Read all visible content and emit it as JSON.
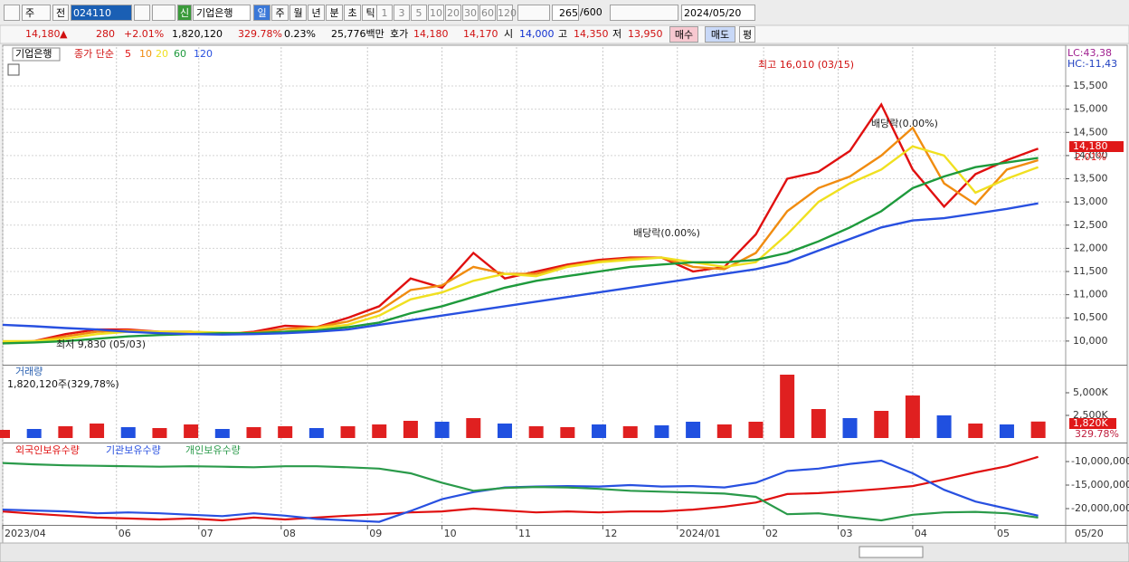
{
  "toolbar": {
    "period": "주",
    "prev": "전",
    "code": "024110",
    "badge": "신",
    "name": "기업은행",
    "units": [
      "일",
      "주",
      "월",
      "년",
      "분",
      "초",
      "틱"
    ],
    "periods": [
      "1",
      "3",
      "5",
      "10",
      "20",
      "30",
      "60",
      "120"
    ],
    "count": "265",
    "max": "/600",
    "date": "2024/05/20"
  },
  "quote": {
    "price": "14,180",
    "arrow": "▲",
    "change": "280",
    "pct": "+2.01%",
    "volume": "1,820,120",
    "vol_ratio": "329.78%",
    "turnover": "0.23%",
    "amount": "25,776백만",
    "ask_label": "호가",
    "ask": "14,180",
    "bid": "14,170",
    "open_label": "시",
    "open": "14,000",
    "high_label": "고",
    "high": "14,350",
    "low_label": "저",
    "low": "13,950",
    "buy": "매수",
    "sell": "매도",
    "eval": "평"
  },
  "chart_data": [
    {
      "type": "line",
      "stock": "기업은행",
      "legend_prefix": "종가 단순",
      "corner_labels": [
        "LC:43,38",
        "HC:-11,43"
      ],
      "price_tag": "14,180",
      "pct_tag": "2.01%",
      "annotations": [
        "최고 16,010 (03/15)",
        "최저 9,830 (05/03)",
        "배당락(0.00%)",
        "배당락(0.00%)"
      ],
      "xlim": [
        0,
        271
      ],
      "ylim": [
        9490,
        16340
      ],
      "grid": true,
      "x": [
        0,
        8,
        16,
        24,
        32,
        40,
        48,
        56,
        64,
        72,
        80,
        88,
        96,
        104,
        112,
        120,
        128,
        136,
        144,
        152,
        160,
        168,
        176,
        184,
        192,
        200,
        208,
        216,
        224,
        232,
        240,
        248,
        256,
        264
      ],
      "xticks": [
        {
          "value": 0,
          "label": "2023/04"
        },
        {
          "value": 29,
          "label": "06"
        },
        {
          "value": 50,
          "label": "07"
        },
        {
          "value": 71,
          "label": "08"
        },
        {
          "value": 93,
          "label": "09"
        },
        {
          "value": 112,
          "label": "10"
        },
        {
          "value": 131,
          "label": "11"
        },
        {
          "value": 153,
          "label": "12"
        },
        {
          "value": 172,
          "label": "2024/01"
        },
        {
          "value": 194,
          "label": "02"
        },
        {
          "value": 213,
          "label": "03"
        },
        {
          "value": 232,
          "label": "04"
        },
        {
          "value": 253,
          "label": "05"
        }
      ],
      "x_end_label": "05/20",
      "yticks": [
        {
          "value": 10000,
          "label": "10,000"
        },
        {
          "value": 10500,
          "label": "10,500"
        },
        {
          "value": 11000,
          "label": "11,000"
        },
        {
          "value": 11500,
          "label": "11,500"
        },
        {
          "value": 12000,
          "label": "12,000"
        },
        {
          "value": 12500,
          "label": "12,500"
        },
        {
          "value": 13000,
          "label": "13,000"
        },
        {
          "value": 13500,
          "label": "13,500"
        },
        {
          "value": 14000,
          "label": "14,000"
        },
        {
          "value": 14500,
          "label": "14,500"
        },
        {
          "value": 15000,
          "label": "15,000"
        },
        {
          "value": 15500,
          "label": "15,500"
        }
      ],
      "series": [
        {
          "name": "5",
          "color": "#e01010",
          "values": [
            9950,
            10000,
            10150,
            10250,
            10250,
            10200,
            10200,
            10150,
            10200,
            10330,
            10300,
            10500,
            10750,
            11350,
            11150,
            11900,
            11350,
            11500,
            11650,
            11750,
            11800,
            11800,
            11500,
            11600,
            12300,
            13500,
            13650,
            14100,
            15100,
            13700,
            12900,
            13600,
            13900,
            14150
          ]
        },
        {
          "name": "10",
          "color": "#f08c10",
          "values": [
            9980,
            10000,
            10100,
            10200,
            10230,
            10200,
            10200,
            10170,
            10180,
            10260,
            10300,
            10420,
            10650,
            11100,
            11200,
            11600,
            11450,
            11450,
            11620,
            11720,
            11780,
            11800,
            11600,
            11550,
            11900,
            12800,
            13300,
            13550,
            14000,
            14600,
            13400,
            12950,
            13700,
            13900
          ]
        },
        {
          "name": "20",
          "color": "#f0e020",
          "values": [
            10000,
            10000,
            10050,
            10150,
            10200,
            10200,
            10200,
            10180,
            10170,
            10200,
            10280,
            10350,
            10550,
            10900,
            11050,
            11300,
            11450,
            11400,
            11600,
            11700,
            11750,
            11800,
            11700,
            11600,
            11700,
            12300,
            13000,
            13400,
            13700,
            14200,
            14000,
            13200,
            13500,
            13750
          ]
        },
        {
          "name": "60",
          "color": "#1e9a3c",
          "values": [
            9950,
            9970,
            10000,
            10050,
            10100,
            10130,
            10150,
            10170,
            10170,
            10200,
            10230,
            10300,
            10400,
            10600,
            10750,
            10950,
            11150,
            11300,
            11400,
            11500,
            11600,
            11650,
            11700,
            11700,
            11750,
            11900,
            12150,
            12450,
            12800,
            13300,
            13550,
            13750,
            13850,
            13950
          ]
        },
        {
          "name": "120",
          "color": "#2850e0",
          "values": [
            10350,
            10320,
            10280,
            10250,
            10200,
            10170,
            10150,
            10140,
            10150,
            10170,
            10200,
            10250,
            10350,
            10450,
            10550,
            10650,
            10750,
            10850,
            10950,
            11050,
            11150,
            11250,
            11350,
            11450,
            11550,
            11700,
            11950,
            12200,
            12450,
            12600,
            12650,
            12750,
            12850,
            12970
          ]
        }
      ]
    },
    {
      "type": "bar",
      "name": "거래량",
      "info": "1,820,120주(329,78%)",
      "last_tag": "1,820K",
      "last_pct": "329.78%",
      "xlim": [
        0,
        271
      ],
      "ylim": [
        -400,
        8000
      ],
      "yticks": [
        {
          "value": 5000,
          "label": "5,000K"
        },
        {
          "value": 2500,
          "label": "2,500K"
        }
      ],
      "x": [
        0,
        8,
        16,
        24,
        32,
        40,
        48,
        56,
        64,
        72,
        80,
        88,
        96,
        104,
        112,
        120,
        128,
        136,
        144,
        152,
        160,
        168,
        176,
        184,
        192,
        200,
        208,
        216,
        224,
        232,
        240,
        248,
        256,
        264
      ],
      "values": [
        900,
        1000,
        1300,
        1600,
        1200,
        1100,
        1500,
        1000,
        1200,
        1300,
        1100,
        1300,
        1500,
        1900,
        1800,
        2200,
        1600,
        1300,
        1200,
        1500,
        1300,
        1400,
        1800,
        1500,
        1800,
        7000,
        3200,
        2200,
        3000,
        4700,
        2500,
        1600,
        1500,
        1820
      ],
      "colors": [
        "#e02020",
        "#2050e0",
        "#e02020",
        "#e02020",
        "#2050e0",
        "#e02020",
        "#e02020",
        "#2050e0",
        "#e02020",
        "#e02020",
        "#2050e0",
        "#e02020",
        "#e02020",
        "#e02020",
        "#2050e0",
        "#e02020",
        "#2050e0",
        "#e02020",
        "#e02020",
        "#2050e0",
        "#e02020",
        "#2050e0",
        "#2050e0",
        "#e02020",
        "#e02020",
        "#e02020",
        "#e02020",
        "#2050e0",
        "#e02020",
        "#e02020",
        "#2050e0",
        "#e02020",
        "#2050e0",
        "#e02020"
      ]
    },
    {
      "type": "line",
      "xlim": [
        0,
        271
      ],
      "ylim": [
        -23460000,
        -6150000
      ],
      "yticks": [
        {
          "value": -10000000,
          "label": "-10,000,000"
        },
        {
          "value": -15000000,
          "label": "-15,000,000"
        },
        {
          "value": -20000000,
          "label": "-20,000,000"
        }
      ],
      "x": [
        0,
        8,
        16,
        24,
        32,
        40,
        48,
        56,
        64,
        72,
        80,
        88,
        96,
        104,
        112,
        120,
        128,
        136,
        144,
        152,
        160,
        168,
        176,
        184,
        192,
        200,
        208,
        216,
        224,
        232,
        240,
        248,
        256,
        264
      ],
      "series": [
        {
          "name": "외국인보유수량",
          "color": "#e01010",
          "values": [
            -20600000,
            -21100000,
            -21500000,
            -21900000,
            -22100000,
            -22300000,
            -22100000,
            -22500000,
            -21900000,
            -22300000,
            -21900000,
            -21500000,
            -21200000,
            -20800000,
            -20600000,
            -20000000,
            -20400000,
            -20800000,
            -20600000,
            -20800000,
            -20600000,
            -20600000,
            -20200000,
            -19600000,
            -18700000,
            -16900000,
            -16700000,
            -16300000,
            -15800000,
            -15200000,
            -13800000,
            -12300000,
            -11000000,
            -9000000
          ]
        },
        {
          "name": "기관보유수량",
          "color": "#2850e0",
          "values": [
            -20200000,
            -20400000,
            -20600000,
            -21000000,
            -20800000,
            -21000000,
            -21300000,
            -21600000,
            -21000000,
            -21500000,
            -22200000,
            -22500000,
            -22800000,
            -20500000,
            -18000000,
            -16500000,
            -15500000,
            -15300000,
            -15200000,
            -15300000,
            -15000000,
            -15300000,
            -15200000,
            -15500000,
            -14500000,
            -12000000,
            -11500000,
            -10500000,
            -9800000,
            -12500000,
            -16000000,
            -18500000,
            -20000000,
            -21500000
          ]
        },
        {
          "name": "개인보유수량",
          "color": "#2a9a4a",
          "values": [
            -10300000,
            -10600000,
            -10800000,
            -10900000,
            -11000000,
            -11100000,
            -11000000,
            -11100000,
            -11200000,
            -11000000,
            -11000000,
            -11200000,
            -11500000,
            -12500000,
            -14500000,
            -16200000,
            -15600000,
            -15400000,
            -15500000,
            -15800000,
            -16200000,
            -16400000,
            -16600000,
            -16800000,
            -17500000,
            -21200000,
            -21000000,
            -21800000,
            -22500000,
            -21300000,
            -20800000,
            -20700000,
            -21000000,
            -21900000
          ]
        }
      ]
    }
  ]
}
